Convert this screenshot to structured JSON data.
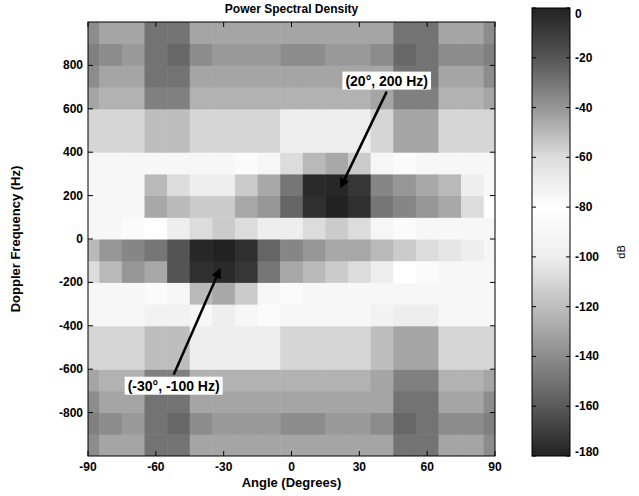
{
  "chart_data": {
    "type": "heatmap",
    "title": "Power Spectral Density",
    "x_label": "Angle (Degrees)",
    "y_label": "Doppler Frequency (Hz)",
    "x": [
      -90,
      -80,
      -70,
      -60,
      -50,
      -40,
      -30,
      -20,
      -10,
      0,
      10,
      20,
      30,
      40,
      50,
      60,
      70,
      80,
      90
    ],
    "y": [
      -950,
      -850,
      -750,
      -650,
      -550,
      -450,
      -350,
      -250,
      -150,
      -50,
      50,
      150,
      250,
      350,
      450,
      550,
      650,
      750,
      850,
      950
    ],
    "values": [
      [
        -140,
        -130,
        -130,
        -150,
        -150,
        -130,
        -130,
        -130,
        -130,
        -130,
        -130,
        -130,
        -130,
        -130,
        -150,
        -150,
        -130,
        -130,
        -140
      ],
      [
        -145,
        -140,
        -135,
        -150,
        -155,
        -140,
        -135,
        -135,
        -135,
        -140,
        -140,
        -135,
        -135,
        -140,
        -155,
        -150,
        -140,
        -140,
        -145
      ],
      [
        -140,
        -130,
        -130,
        -150,
        -150,
        -130,
        -130,
        -130,
        -130,
        -130,
        -130,
        -130,
        -130,
        -130,
        -150,
        -150,
        -130,
        -130,
        -140
      ],
      [
        -130,
        -125,
        -125,
        -145,
        -145,
        -125,
        -125,
        -125,
        -125,
        -125,
        -125,
        -125,
        -125,
        -130,
        -145,
        -145,
        -125,
        -125,
        -130
      ],
      [
        -110,
        -110,
        -110,
        -120,
        -120,
        -100,
        -100,
        -100,
        -100,
        -110,
        -110,
        -110,
        -110,
        -120,
        -130,
        -130,
        -110,
        -110,
        -110
      ],
      [
        -110,
        -110,
        -110,
        -120,
        -120,
        -100,
        -100,
        -100,
        -100,
        -110,
        -110,
        -110,
        -110,
        -120,
        -130,
        -130,
        -110,
        -110,
        -110
      ],
      [
        -90,
        -90,
        -90,
        -95,
        -95,
        -75,
        -70,
        -75,
        -85,
        -90,
        -90,
        -90,
        -90,
        -95,
        -100,
        -100,
        -90,
        -90,
        -90
      ],
      [
        -90,
        -90,
        -90,
        -85,
        -75,
        -50,
        -45,
        -55,
        -75,
        -85,
        -90,
        -90,
        -90,
        -90,
        -90,
        -90,
        -90,
        -90,
        -90
      ],
      [
        -60,
        -50,
        -40,
        -45,
        -20,
        -5,
        -3,
        -8,
        -30,
        -45,
        -50,
        -55,
        -60,
        -70,
        -80,
        -85,
        -90,
        -90,
        -90
      ],
      [
        -50,
        -40,
        -35,
        -30,
        -20,
        -2,
        0,
        -5,
        -25,
        -35,
        -40,
        -45,
        -45,
        -50,
        -55,
        -60,
        -65,
        -70,
        -75
      ],
      [
        -90,
        -90,
        -85,
        -80,
        -70,
        -60,
        -55,
        -60,
        -70,
        -70,
        -60,
        -55,
        -60,
        -75,
        -85,
        -90,
        -90,
        -90,
        -90
      ],
      [
        -90,
        -90,
        -90,
        -45,
        -50,
        -55,
        -55,
        -45,
        -40,
        -25,
        -5,
        0,
        -5,
        -30,
        -35,
        -40,
        -45,
        -60,
        -80
      ],
      [
        -90,
        -90,
        -90,
        -50,
        -60,
        -70,
        -70,
        -55,
        -45,
        -30,
        -3,
        -2,
        -8,
        -35,
        -40,
        -45,
        -50,
        -70,
        -90
      ],
      [
        -90,
        -90,
        -90,
        -90,
        -90,
        -90,
        -90,
        -85,
        -75,
        -60,
        -50,
        -45,
        -55,
        -75,
        -85,
        -90,
        -90,
        -90,
        -90
      ],
      [
        -110,
        -110,
        -110,
        -120,
        -120,
        -110,
        -110,
        -110,
        -110,
        -100,
        -100,
        -100,
        -100,
        -110,
        -130,
        -130,
        -110,
        -110,
        -110
      ],
      [
        -110,
        -110,
        -110,
        -120,
        -120,
        -110,
        -110,
        -110,
        -110,
        -100,
        -100,
        -100,
        -100,
        -110,
        -130,
        -130,
        -110,
        -110,
        -110
      ],
      [
        -130,
        -125,
        -125,
        -145,
        -145,
        -125,
        -125,
        -125,
        -125,
        -125,
        -125,
        -125,
        -125,
        -130,
        -145,
        -145,
        -125,
        -125,
        -130
      ],
      [
        -140,
        -130,
        -130,
        -150,
        -150,
        -130,
        -130,
        -130,
        -130,
        -130,
        -130,
        -130,
        -130,
        -130,
        -150,
        -150,
        -130,
        -130,
        -140
      ],
      [
        -145,
        -140,
        -135,
        -150,
        -155,
        -140,
        -135,
        -135,
        -135,
        -140,
        -140,
        -135,
        -135,
        -140,
        -155,
        -150,
        -140,
        -140,
        -145
      ],
      [
        -140,
        -130,
        -130,
        -150,
        -150,
        -130,
        -130,
        -130,
        -130,
        -130,
        -130,
        -130,
        -130,
        -130,
        -150,
        -150,
        -130,
        -130,
        -140
      ]
    ],
    "xlim": [
      -90,
      90
    ],
    "xticks": [
      -90,
      -60,
      -30,
      0,
      30,
      60,
      90
    ],
    "ylim": [
      -1000,
      1000
    ],
    "yticks": [
      -800,
      -600,
      -400,
      -200,
      0,
      200,
      400,
      600,
      800
    ],
    "colorbar": {
      "label": "dB",
      "range": [
        -180,
        0
      ],
      "ticks": [
        0,
        -20,
        -40,
        -60,
        -80,
        -100,
        -120,
        -140,
        -160,
        -180
      ]
    },
    "annotations": [
      {
        "text": "(20°, 200 Hz)",
        "x": 20,
        "y": 200
      },
      {
        "text": "(-30°, -100 Hz)",
        "x": -30,
        "y": -100
      }
    ],
    "grid": false
  }
}
